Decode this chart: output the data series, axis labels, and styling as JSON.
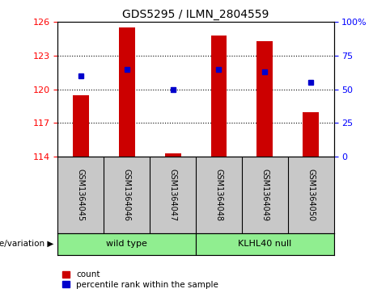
{
  "title": "GDS5295 / ILMN_2804559",
  "samples": [
    "GSM1364045",
    "GSM1364046",
    "GSM1364047",
    "GSM1364048",
    "GSM1364049",
    "GSM1364050"
  ],
  "bar_values": [
    119.5,
    125.5,
    114.3,
    124.8,
    124.3,
    118.0
  ],
  "dot_percentile": [
    60,
    65,
    50,
    65,
    63,
    55
  ],
  "groups": [
    {
      "label": "wild type",
      "start": 0,
      "end": 2,
      "color": "#90EE90"
    },
    {
      "label": "KLHL40 null",
      "start": 3,
      "end": 5,
      "color": "#90EE90"
    }
  ],
  "ylim_left": [
    114,
    126
  ],
  "yticks_left": [
    114,
    117,
    120,
    123,
    126
  ],
  "ylim_right": [
    0,
    100
  ],
  "yticks_right": [
    0,
    25,
    50,
    75,
    100
  ],
  "gridline_y": [
    117,
    120,
    123
  ],
  "bar_color": "#CC0000",
  "dot_color": "#0000CC",
  "label_bg": "#C8C8C8",
  "plot_bg": "#FFFFFF",
  "group_label": "genotype/variation"
}
